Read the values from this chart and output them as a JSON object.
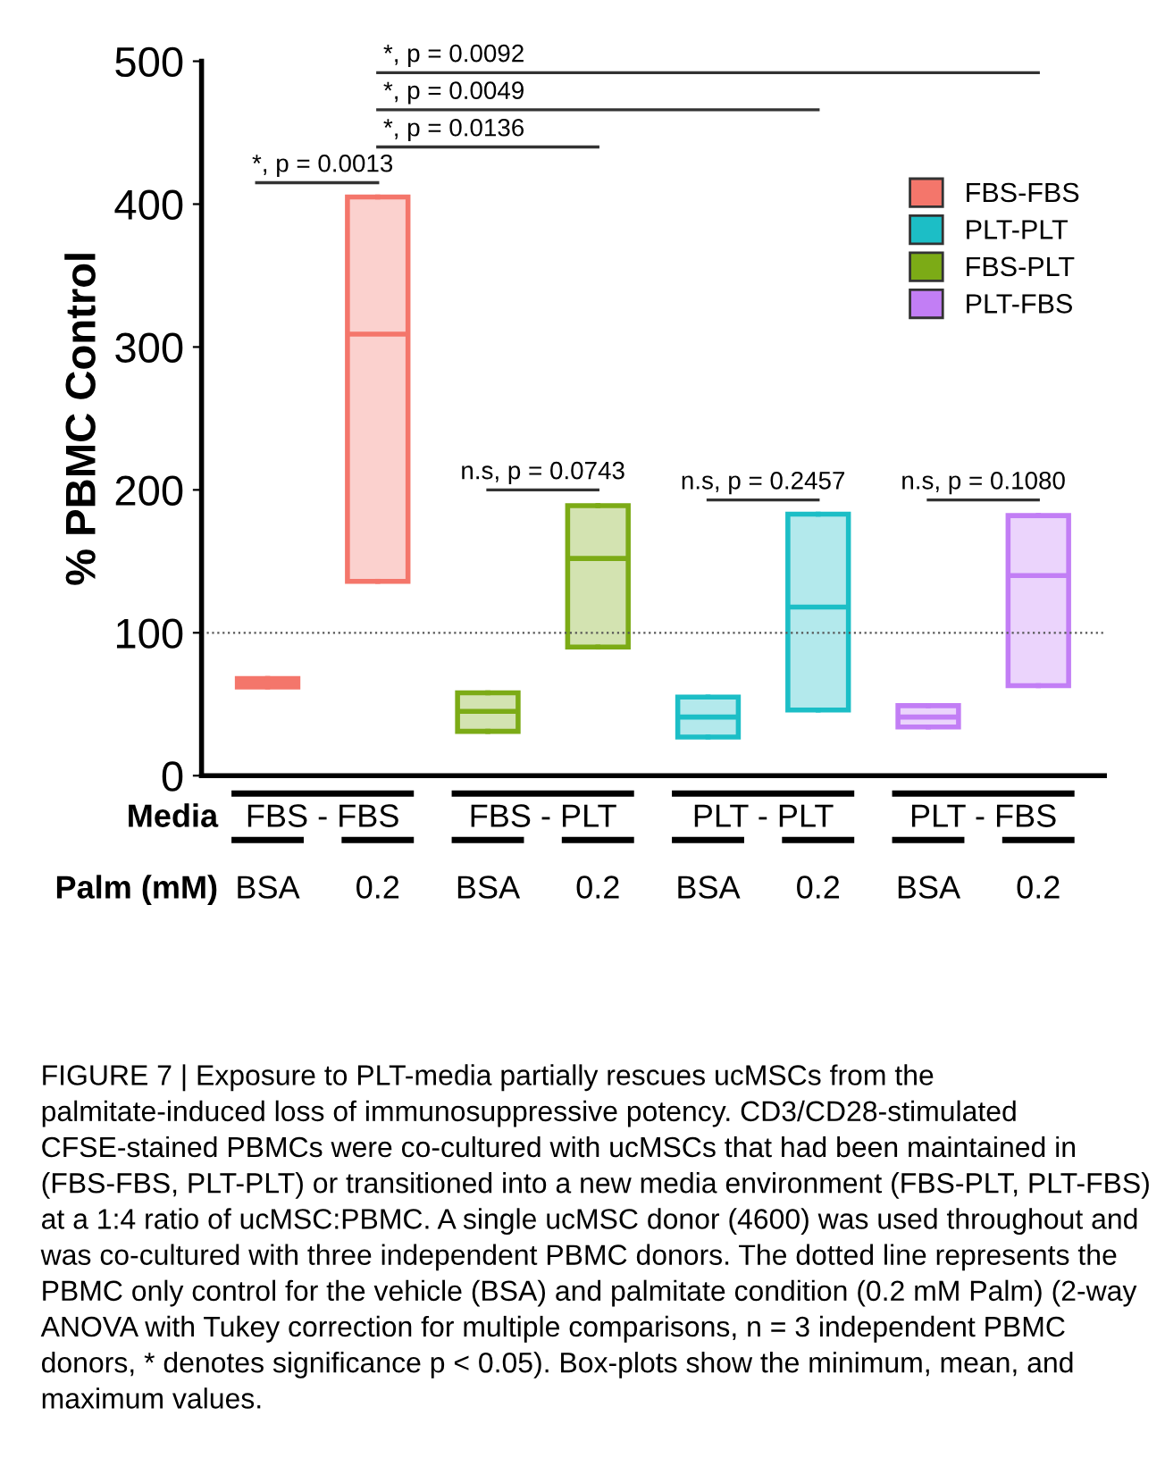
{
  "chart_data": {
    "type": "box",
    "ylabel": "% PBMC Control",
    "categories": [
      "BSA",
      "0.2",
      "BSA",
      "0.2",
      "BSA",
      "0.2",
      "BSA",
      "0.2"
    ],
    "series": [
      {
        "name": "FBS-FBS",
        "color": "#f4766b",
        "boxes": [
          {
            "low": 62,
            "q1": 62,
            "median": 65,
            "q3": 68,
            "high": 68
          },
          {
            "low": 136,
            "q1": 136,
            "median": 309,
            "q3": 405,
            "high": 405
          },
          null,
          null,
          null,
          null,
          null,
          null
        ]
      },
      {
        "name": "PLT-PLT",
        "color": "#1cbec6",
        "boxes": [
          null,
          null,
          null,
          null,
          {
            "low": 27,
            "q1": 27,
            "median": 41,
            "q3": 55,
            "high": 55
          },
          {
            "low": 46,
            "q1": 46,
            "median": 118,
            "q3": 183,
            "high": 183
          },
          null,
          null
        ]
      },
      {
        "name": "FBS-PLT",
        "color": "#7cab16",
        "boxes": [
          null,
          null,
          {
            "low": 31,
            "q1": 31,
            "median": 45,
            "q3": 58,
            "high": 58
          },
          {
            "low": 90,
            "q1": 90,
            "median": 152,
            "q3": 189,
            "high": 189
          },
          null,
          null,
          null,
          null
        ]
      },
      {
        "name": "PLT-FBS",
        "color": "#c27ef5",
        "boxes": [
          null,
          null,
          null,
          null,
          null,
          null,
          {
            "low": 34,
            "q1": 34,
            "median": 41,
            "q3": 49,
            "high": 49
          },
          {
            "low": 63,
            "q1": 63,
            "median": 140,
            "q3": 182,
            "high": 182
          }
        ]
      }
    ],
    "ylim": [
      0,
      500
    ],
    "yticks": [
      0,
      100,
      200,
      300,
      400,
      500
    ],
    "grid": false,
    "legend": "top right",
    "ref_lines": [
      {
        "axis": "y",
        "value": 100,
        "color": "#555555",
        "line_style": "dotted"
      }
    ],
    "annotations": [
      "Media",
      "FBS - FBS",
      "FBS - PLT",
      "PLT - PLT",
      "PLT - FBS",
      "Palm (mM)",
      "*, p = 0.0013",
      "*, p = 0.0136",
      "*, p = 0.0049",
      "*, p = 0.0092",
      "n.s, p = 0.0743",
      "n.s, p = 0.2457",
      "n.s, p = 0.1080",
      "FIGURE 7 | Exposure to PLT-media partially rescues ucMSCs from the palmitate-induced loss of immunosuppressive potency. CD3/CD28-stimulated CFSE-stained PBMCs were co-cultured with ucMSCs that had been maintained in (FBS-FBS, PLT-PLT) or transitioned into a new media environment (FBS-PLT, PLT-FBS) at a 1:4 ratio of ucMSC:PBMC. A single ucMSC donor (4600) was used throughout and was co-cultured with three independent PBMC donors. The dotted line represents the PBMC only control for the vehicle (BSA) and palmitate condition (0.2 mM Palm) (2-way ANOVA with Tukey correction for multiple comparisons, n = 3 independent PBMC donors, * denotes significance p < 0.05). Box-plots show the minimum, mean, and maximum values."
    ]
  }
}
